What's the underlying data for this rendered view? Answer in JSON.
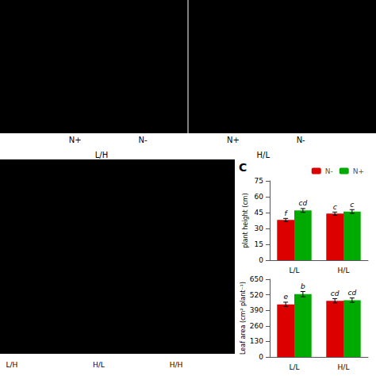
{
  "chart_data": [
    {
      "type": "bar",
      "categories": [
        "L/L",
        "H/L"
      ],
      "y_label": "plant height (cm)",
      "ylim": [
        0,
        75
      ],
      "yticks": [
        0,
        15,
        30,
        45,
        60,
        75
      ],
      "grid": false,
      "legend": "upper right",
      "series": [
        {
          "name": "N-",
          "color": "#dd0000",
          "values": [
            38.0,
            44.0
          ],
          "errors": [
            1.5,
            1.5
          ],
          "annotations": [
            "f",
            "c"
          ]
        },
        {
          "name": "N+",
          "color": "#00aa00",
          "values": [
            47.0,
            46.0
          ],
          "errors": [
            1.8,
            1.8
          ],
          "annotations": [
            "cd",
            "c"
          ]
        }
      ]
    },
    {
      "type": "bar",
      "categories": [
        "L/L",
        "H/L"
      ],
      "y_label": "Leaf area (cm² plant⁻¹)",
      "ylim": [
        0,
        650
      ],
      "yticks": [
        0,
        130,
        260,
        390,
        520,
        650
      ],
      "grid": false,
      "series": [
        {
          "name": "N-",
          "color": "#dd0000",
          "values": [
            440,
            470
          ],
          "errors": [
            18,
            18
          ],
          "annotations": [
            "e",
            "cd"
          ]
        },
        {
          "name": "N+",
          "color": "#00aa00",
          "values": [
            525,
            475
          ],
          "errors": [
            22,
            18
          ],
          "annotations": [
            "b",
            "cd"
          ]
        }
      ]
    }
  ],
  "annotations": {
    "panel": "C",
    "top_N": [
      "N+",
      "N-",
      "N+",
      "N-"
    ],
    "top_groups": [
      "L/H",
      "H/L"
    ],
    "bottom_photos": [
      "L/H",
      "H/L",
      "H/H"
    ]
  }
}
